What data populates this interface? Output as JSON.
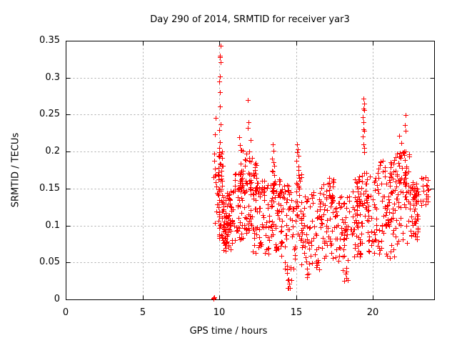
{
  "chart_data": {
    "type": "scatter",
    "title": "Day 290 of 2014, SRMTID for receiver yar3",
    "xlabel": "GPS time / hours",
    "ylabel": "SRMTID / TECUs",
    "xlim": [
      0,
      24
    ],
    "ylim": [
      0,
      0.35
    ],
    "x_ticks": [
      {
        "v": 0,
        "label": "0"
      },
      {
        "v": 5,
        "label": "5"
      },
      {
        "v": 10,
        "label": "10"
      },
      {
        "v": 15,
        "label": "15"
      },
      {
        "v": 20,
        "label": "20"
      }
    ],
    "y_ticks": [
      {
        "v": 0,
        "label": "0"
      },
      {
        "v": 0.05,
        "label": "0.05"
      },
      {
        "v": 0.1,
        "label": "0.1"
      },
      {
        "v": 0.15,
        "label": "0.15"
      },
      {
        "v": 0.2,
        "label": "0.2"
      },
      {
        "v": 0.25,
        "label": "0.25"
      },
      {
        "v": 0.3,
        "label": "0.3"
      },
      {
        "v": 0.35,
        "label": "0.35"
      }
    ],
    "grid": true,
    "marker": {
      "shape": "plus",
      "color": "#ff0000",
      "size": 7
    },
    "series": [
      {
        "name": "SRMTID",
        "seed": 1290,
        "points": [
          [
            9.64,
            0.002
          ],
          [
            9.65,
            0.001
          ],
          [
            9.66,
            0.003
          ],
          [
            10.07,
            0.343
          ],
          [
            10.06,
            0.33
          ],
          [
            10.04,
            0.328
          ],
          [
            10.08,
            0.321
          ],
          [
            10.03,
            0.302
          ],
          [
            10.02,
            0.295
          ],
          [
            10.06,
            0.28
          ],
          [
            10.03,
            0.261
          ],
          [
            10.1,
            0.237
          ],
          [
            10.02,
            0.229
          ],
          [
            10.05,
            0.213
          ],
          [
            11.88,
            0.27
          ],
          [
            11.92,
            0.24
          ],
          [
            11.85,
            0.232
          ],
          [
            11.3,
            0.219
          ],
          [
            11.35,
            0.209
          ],
          [
            12.05,
            0.216
          ],
          [
            13.48,
            0.21
          ],
          [
            13.52,
            0.201
          ],
          [
            13.45,
            0.19
          ],
          [
            13.55,
            0.186
          ],
          [
            13.58,
            0.181
          ],
          [
            13.5,
            0.173
          ],
          [
            15.05,
            0.21
          ],
          [
            15.1,
            0.203
          ],
          [
            15.08,
            0.199
          ],
          [
            15.15,
            0.194
          ],
          [
            15.02,
            0.188
          ],
          [
            14.55,
            0.021
          ],
          [
            14.62,
            0.015
          ],
          [
            19.38,
            0.272
          ],
          [
            19.42,
            0.265
          ],
          [
            19.4,
            0.258
          ],
          [
            19.44,
            0.256
          ],
          [
            19.36,
            0.247
          ],
          [
            19.41,
            0.24
          ],
          [
            19.39,
            0.23
          ],
          [
            19.43,
            0.228
          ],
          [
            19.37,
            0.22
          ],
          [
            19.4,
            0.21
          ],
          [
            19.45,
            0.205
          ],
          [
            19.42,
            0.199
          ],
          [
            22.15,
            0.249
          ],
          [
            22.1,
            0.236
          ],
          [
            22.12,
            0.228
          ],
          [
            21.87,
            0.212
          ],
          [
            21.7,
            0.221
          ]
        ],
        "cluster_fields": [
          "x_min",
          "x_max",
          "y_min",
          "y_max",
          "count"
        ],
        "clusters": [
          [
            9.62,
            9.78,
            0.165,
            0.25,
            7
          ],
          [
            9.72,
            9.95,
            0.1,
            0.18,
            12
          ],
          [
            9.95,
            10.22,
            0.08,
            0.205,
            50
          ],
          [
            10.22,
            11.0,
            0.065,
            0.15,
            60
          ],
          [
            10.3,
            10.7,
            0.08,
            0.118,
            22
          ],
          [
            11.0,
            11.6,
            0.08,
            0.175,
            45
          ],
          [
            11.28,
            11.55,
            0.15,
            0.205,
            12
          ],
          [
            11.6,
            12.15,
            0.09,
            0.2,
            50
          ],
          [
            12.15,
            12.5,
            0.14,
            0.19,
            20
          ],
          [
            12.1,
            13.05,
            0.058,
            0.168,
            55
          ],
          [
            13.05,
            14.0,
            0.06,
            0.16,
            55
          ],
          [
            13.4,
            13.62,
            0.125,
            0.175,
            10
          ],
          [
            13.85,
            14.1,
            0.105,
            0.17,
            12
          ],
          [
            14.0,
            15.0,
            0.04,
            0.155,
            55
          ],
          [
            14.35,
            14.75,
            0.013,
            0.045,
            8
          ],
          [
            15.0,
            15.35,
            0.08,
            0.185,
            28
          ],
          [
            15.35,
            16.5,
            0.045,
            0.145,
            55
          ],
          [
            15.6,
            15.9,
            0.03,
            0.052,
            6
          ],
          [
            16.3,
            16.6,
            0.038,
            0.058,
            6
          ],
          [
            16.5,
            17.5,
            0.055,
            0.16,
            55
          ],
          [
            17.15,
            17.48,
            0.13,
            0.172,
            14
          ],
          [
            17.5,
            18.5,
            0.05,
            0.14,
            55
          ],
          [
            18.0,
            18.38,
            0.024,
            0.048,
            7
          ],
          [
            18.5,
            19.3,
            0.055,
            0.17,
            50
          ],
          [
            18.95,
            19.28,
            0.12,
            0.172,
            14
          ],
          [
            19.3,
            19.6,
            0.09,
            0.175,
            16
          ],
          [
            19.6,
            20.5,
            0.06,
            0.17,
            50
          ],
          [
            20.3,
            20.75,
            0.15,
            0.188,
            8
          ],
          [
            20.5,
            21.5,
            0.055,
            0.18,
            55
          ],
          [
            20.75,
            21.05,
            0.09,
            0.14,
            18
          ],
          [
            21.15,
            21.4,
            0.16,
            0.2,
            8
          ],
          [
            21.5,
            22.4,
            0.075,
            0.2,
            55
          ],
          [
            22.0,
            22.35,
            0.145,
            0.205,
            15
          ],
          [
            22.4,
            22.95,
            0.08,
            0.158,
            45
          ],
          [
            23.1,
            23.65,
            0.125,
            0.168,
            18
          ],
          [
            22.4,
            23.0,
            0.13,
            0.16,
            12
          ]
        ]
      }
    ]
  },
  "colors": {
    "background": "#ffffff",
    "axis": "#000000",
    "grid": "#a8a8a8",
    "text": "#000000",
    "marker": "#ff0000"
  }
}
